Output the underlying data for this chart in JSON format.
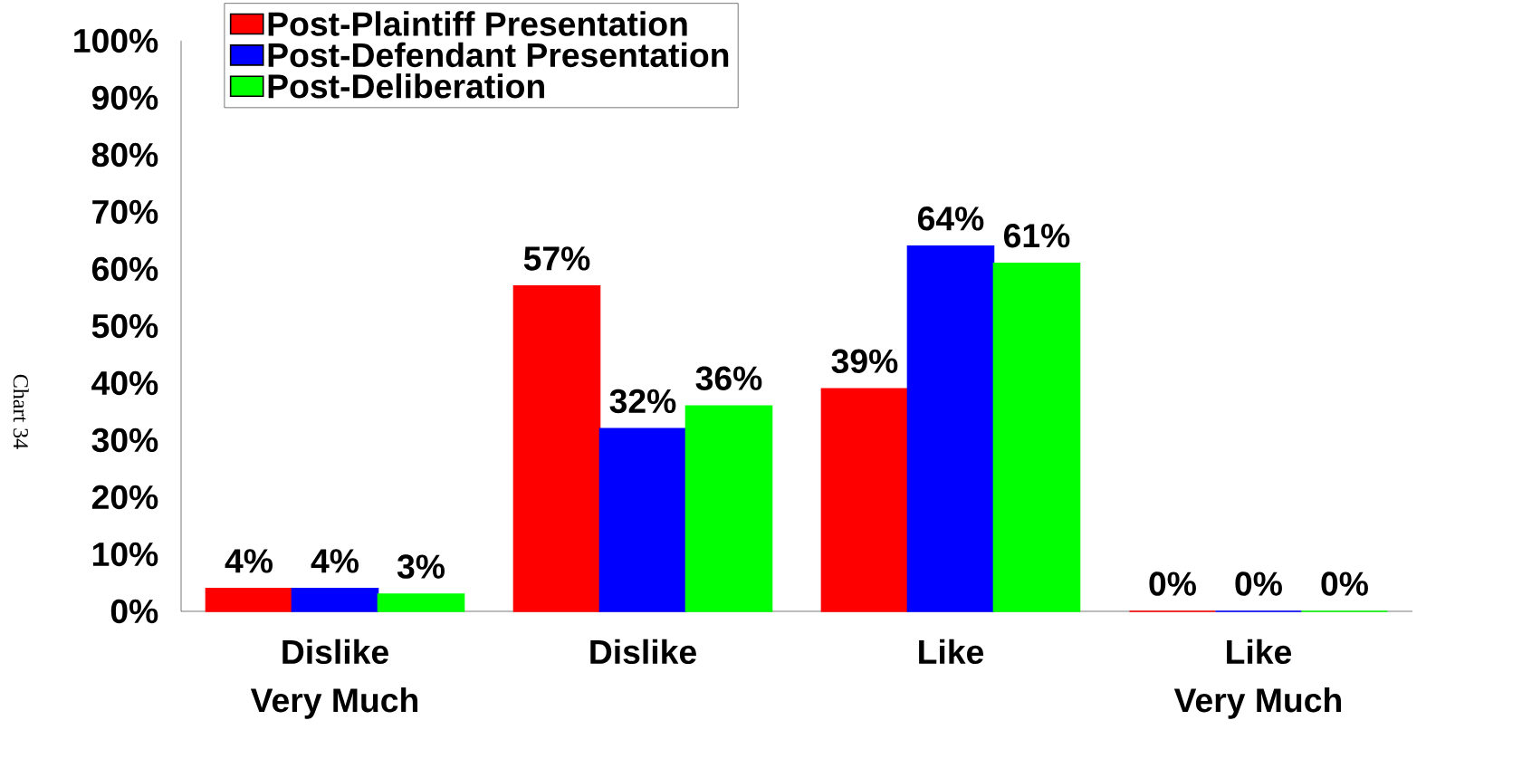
{
  "chart_data": {
    "type": "bar",
    "categories": [
      "Dislike\nVery Much",
      "Dislike",
      "Like",
      "Like\nVery Much"
    ],
    "series": [
      {
        "name": "Post-Plaintiff Presentation",
        "color": "#ff0000",
        "values": [
          4,
          57,
          39,
          0
        ],
        "value_labels": [
          "4%",
          "57%",
          "39%",
          "0%"
        ]
      },
      {
        "name": "Post-Defendant Presentation",
        "color": "#0000ff",
        "values": [
          4,
          32,
          64,
          0
        ],
        "value_labels": [
          "4%",
          "32%",
          "64%",
          "0%"
        ]
      },
      {
        "name": "Post-Deliberation",
        "color": "#00ff00",
        "values": [
          3,
          36,
          61,
          0
        ],
        "value_labels": [
          "3%",
          "36%",
          "61%",
          "0%"
        ]
      }
    ],
    "ylim": [
      0,
      100
    ],
    "yticks": [
      {
        "value": 0,
        "label": "0%"
      },
      {
        "value": 10,
        "label": "10%"
      },
      {
        "value": 20,
        "label": "20%"
      },
      {
        "value": 30,
        "label": "30%"
      },
      {
        "value": 40,
        "label": "40%"
      },
      {
        "value": 50,
        "label": "50%"
      },
      {
        "value": 60,
        "label": "60%"
      },
      {
        "value": 70,
        "label": "70%"
      },
      {
        "value": 80,
        "label": "80%"
      },
      {
        "value": 90,
        "label": "90%"
      },
      {
        "value": 100,
        "label": "100%"
      }
    ],
    "legend": "top left",
    "annotations": [
      "Chart 34"
    ]
  }
}
